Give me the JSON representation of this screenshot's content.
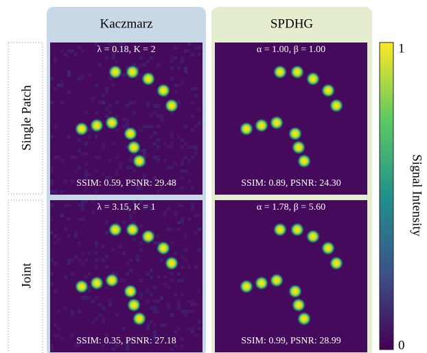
{
  "columns": [
    "Kaczmarz",
    "SPDHG"
  ],
  "rows": [
    {
      "label": "Single Patch",
      "panels": [
        {
          "params": "λ = 0.18, K = 2",
          "metrics": "SSIM: 0.59, PSNR: 29.48"
        },
        {
          "params": "α = 1.00, β = 1.00",
          "metrics": "SSIM: 0.89, PSNR: 24.30"
        }
      ]
    },
    {
      "label": "Joint",
      "panels": [
        {
          "params": "λ = 3.15, K = 1",
          "metrics": "SSIM: 0.35, PSNR: 27.18"
        },
        {
          "params": "α = 1.78, β = 5.60",
          "metrics": "SSIM: 0.99, PSNR: 28.99"
        }
      ]
    }
  ],
  "colorbar": {
    "label": "Signal Intensity",
    "ticks": [
      1,
      0
    ]
  }
}
